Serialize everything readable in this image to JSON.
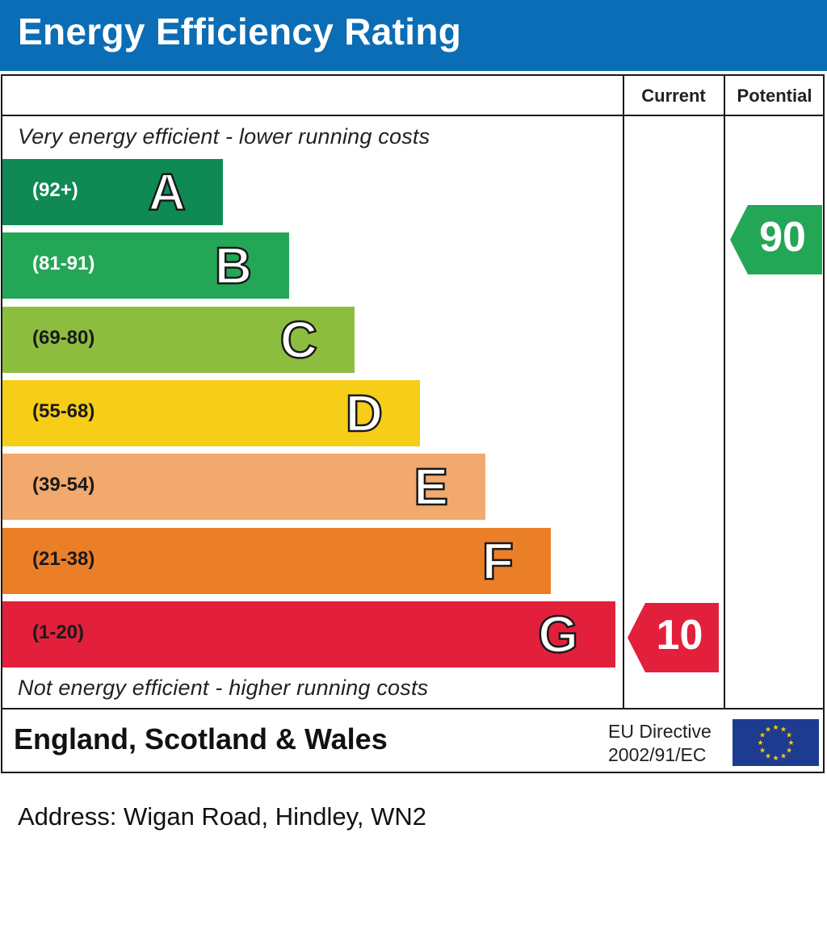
{
  "header": {
    "title": "Energy Efficiency Rating",
    "bg_color": "#0b6db5"
  },
  "columns": {
    "current": "Current",
    "potential": "Potential"
  },
  "notes": {
    "top": "Very energy efficient - lower running costs",
    "bottom": "Not energy efficient - higher running costs"
  },
  "chart_data": {
    "type": "bar",
    "title": "Energy Efficiency Rating",
    "bands": [
      {
        "letter": "A",
        "range": "(92+)",
        "color": "#0f8a55",
        "text_color": "#ffffff"
      },
      {
        "letter": "B",
        "range": "(81-91)",
        "color": "#24a657",
        "text_color": "#ffffff"
      },
      {
        "letter": "C",
        "range": "(69-80)",
        "color": "#8dbd3f",
        "text_color": "#1a1a1a"
      },
      {
        "letter": "D",
        "range": "(55-68)",
        "color": "#f6cd17",
        "text_color": "#1a1a1a"
      },
      {
        "letter": "E",
        "range": "(39-54)",
        "color": "#f2a96d",
        "text_color": "#1a1a1a"
      },
      {
        "letter": "F",
        "range": "(21-38)",
        "color": "#eb7f28",
        "text_color": "#1a1a1a"
      },
      {
        "letter": "G",
        "range": "(1-20)",
        "color": "#e2203c",
        "text_color": "#1a1a1a"
      }
    ],
    "current": {
      "value": "10",
      "band": "G",
      "color": "#e2203c"
    },
    "potential": {
      "value": "90",
      "band": "B",
      "color": "#24a657"
    }
  },
  "footer": {
    "region": "England, Scotland & Wales",
    "directive_line1": "EU Directive",
    "directive_line2": "2002/91/EC",
    "flag_icon": "eu-flag-icon"
  },
  "address": "Address: Wigan Road, Hindley, WN2"
}
